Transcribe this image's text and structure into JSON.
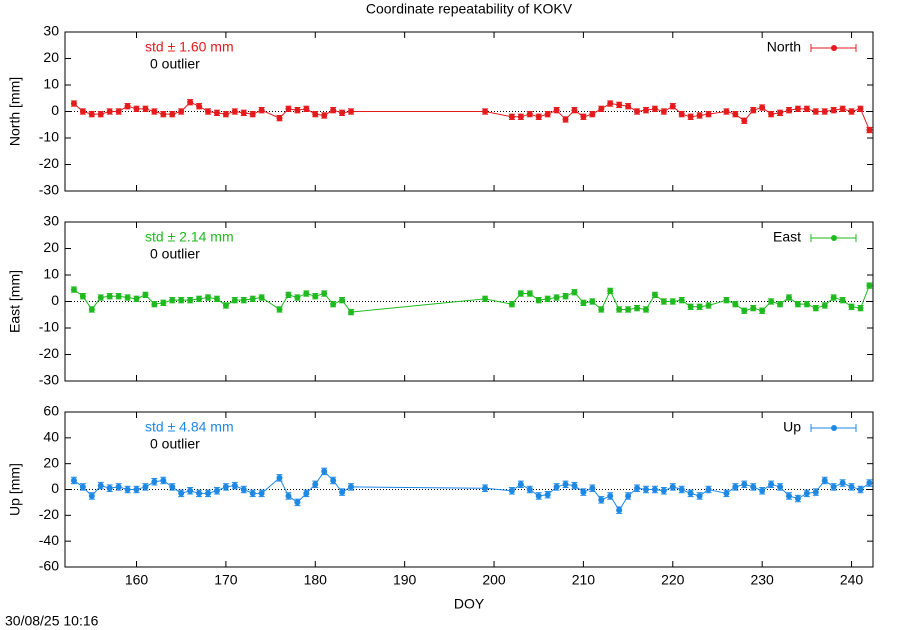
{
  "title": "Coordinate repeatability of KOKV",
  "timestamp": "30/08/25 10:16",
  "chart_data": [
    {
      "type": "line",
      "ylabel": "North [mm]",
      "annotation": "std ± 1.60 mm",
      "outliers": "0 outlier",
      "xlim": [
        152,
        242.4
      ],
      "xticks": [
        160,
        170,
        180,
        190,
        200,
        210,
        220,
        230,
        240
      ],
      "ylim": [
        -30,
        30
      ],
      "yticks": [
        -30,
        -20,
        -10,
        0,
        10,
        20,
        30
      ],
      "legend": "top-right",
      "x": [
        153,
        154,
        155,
        156,
        157,
        158,
        159,
        160,
        161,
        162,
        163,
        164,
        165,
        166,
        167,
        168,
        169,
        170,
        171,
        172,
        173,
        174,
        176,
        177,
        178,
        179,
        180,
        181,
        182,
        183,
        184,
        199,
        202,
        203,
        204,
        205,
        206,
        207,
        208,
        209,
        210,
        211,
        212,
        213,
        214,
        215,
        216,
        217,
        218,
        219,
        220,
        221,
        222,
        223,
        224,
        226,
        227,
        228,
        229,
        230,
        231,
        232,
        233,
        234,
        235,
        236,
        237,
        238,
        239,
        240,
        241,
        242
      ],
      "series": [
        {
          "name": "North",
          "color": "#e41a1c",
          "values": [
            3,
            0,
            -1,
            -1,
            0,
            0,
            2,
            1,
            1,
            0,
            -1,
            -1,
            0,
            3.5,
            2,
            0,
            -0.5,
            -1,
            0,
            -0.5,
            -1,
            0.5,
            -2.5,
            1,
            0.5,
            1,
            -1,
            -1.5,
            0.5,
            -0.5,
            0,
            0,
            -2,
            -2,
            -1,
            -2,
            -1,
            0.5,
            -3,
            0.5,
            -2,
            -1,
            1,
            3,
            2.5,
            2,
            0,
            0.5,
            1,
            0,
            2,
            -1,
            -2,
            -1.5,
            -1,
            0,
            -1,
            -3.5,
            0.5,
            1.5,
            -1,
            -0.5,
            0.5,
            1,
            1,
            0,
            0,
            0.5,
            1,
            0,
            1,
            -7
          ],
          "errors": [
            1,
            1,
            1,
            1,
            1,
            1,
            1,
            1,
            1,
            1,
            1,
            1,
            1,
            1,
            1,
            1,
            1,
            1,
            1,
            1,
            1,
            1,
            1,
            1,
            1,
            1,
            1,
            1,
            1,
            1,
            1,
            1,
            1,
            1,
            1,
            1,
            1,
            1,
            1,
            1,
            1,
            1,
            1,
            1,
            1,
            1,
            1,
            1,
            1,
            1,
            1,
            1,
            1,
            1,
            1,
            1,
            1,
            1,
            1,
            1,
            1,
            1,
            1,
            1,
            1,
            1,
            1,
            1,
            1,
            1,
            1,
            1
          ]
        }
      ]
    },
    {
      "type": "line",
      "ylabel": "East [mm]",
      "annotation": "std ± 2.14 mm",
      "outliers": "0 outlier",
      "xlim": [
        152,
        242.4
      ],
      "xticks": [
        160,
        170,
        180,
        190,
        200,
        210,
        220,
        230,
        240
      ],
      "ylim": [
        -30,
        30
      ],
      "yticks": [
        -30,
        -20,
        -10,
        0,
        10,
        20,
        30
      ],
      "legend": "top-right",
      "x": [
        153,
        154,
        155,
        156,
        157,
        158,
        159,
        160,
        161,
        162,
        163,
        164,
        165,
        166,
        167,
        168,
        169,
        170,
        171,
        172,
        173,
        174,
        176,
        177,
        178,
        179,
        180,
        181,
        182,
        183,
        184,
        199,
        202,
        203,
        204,
        205,
        206,
        207,
        208,
        209,
        210,
        211,
        212,
        213,
        214,
        215,
        216,
        217,
        218,
        219,
        220,
        221,
        222,
        223,
        224,
        226,
        227,
        228,
        229,
        230,
        231,
        232,
        233,
        234,
        235,
        236,
        237,
        238,
        239,
        240,
        241,
        242
      ],
      "series": [
        {
          "name": "East",
          "color": "#1fba1f",
          "values": [
            4.5,
            2,
            -3,
            1.5,
            2,
            2,
            1.5,
            1,
            2.5,
            -1,
            -0.5,
            0.5,
            0.5,
            0.5,
            1,
            1.5,
            1,
            -1.5,
            0.5,
            0.5,
            1,
            1.5,
            -3,
            2.5,
            1.5,
            3,
            2,
            3,
            -1,
            0.5,
            -4,
            1,
            -1,
            3,
            3,
            0.5,
            1,
            1.5,
            2,
            3.5,
            -0.5,
            0,
            -3,
            4,
            -3,
            -3,
            -2.5,
            -3,
            2.5,
            0,
            0,
            0.5,
            -2,
            -2,
            -1.5,
            0.5,
            -1,
            -3.5,
            -2.5,
            -3.5,
            0,
            -1,
            1.5,
            -1,
            -1,
            -2.5,
            -1.5,
            1.5,
            0.5,
            -2,
            -2.5,
            6
          ],
          "errors": [
            1,
            1,
            1,
            1,
            1,
            1,
            1,
            1,
            1,
            1,
            1,
            1,
            1,
            1,
            1,
            1,
            1,
            1,
            1,
            1,
            1,
            1,
            1,
            1,
            1,
            1,
            1,
            1,
            1,
            1,
            1,
            1,
            1,
            1,
            1,
            1,
            1,
            1,
            1,
            1,
            1,
            1,
            1,
            1,
            1,
            1,
            1,
            1,
            1,
            1,
            1,
            1,
            1,
            1,
            1,
            1,
            1,
            1,
            1,
            1,
            1,
            1,
            1,
            1,
            1,
            1,
            1,
            1,
            1,
            1,
            1,
            1
          ]
        }
      ]
    },
    {
      "type": "line",
      "ylabel": "Up [mm]",
      "xlabel": "DOY",
      "annotation": "std ± 4.84 mm",
      "outliers": "0 outlier",
      "xlim": [
        152,
        242.4
      ],
      "xticks": [
        160,
        170,
        180,
        190,
        200,
        210,
        220,
        230,
        240
      ],
      "ylim": [
        -60,
        60
      ],
      "yticks": [
        -60,
        -40,
        -20,
        0,
        20,
        40,
        60
      ],
      "legend": "top-right",
      "x": [
        153,
        154,
        155,
        156,
        157,
        158,
        159,
        160,
        161,
        162,
        163,
        164,
        165,
        166,
        167,
        168,
        169,
        170,
        171,
        172,
        173,
        174,
        176,
        177,
        178,
        179,
        180,
        181,
        182,
        183,
        184,
        199,
        202,
        203,
        204,
        205,
        206,
        207,
        208,
        209,
        210,
        211,
        212,
        213,
        214,
        215,
        216,
        217,
        218,
        219,
        220,
        221,
        222,
        223,
        224,
        226,
        227,
        228,
        229,
        230,
        231,
        232,
        233,
        234,
        235,
        236,
        237,
        238,
        239,
        240,
        241,
        242
      ],
      "series": [
        {
          "name": "Up",
          "color": "#1e88e5",
          "values": [
            7,
            2,
            -5,
            3,
            1,
            2,
            0,
            0,
            2,
            6,
            7,
            2,
            -3,
            -1,
            -3,
            -3,
            -1,
            2,
            3,
            0,
            -3,
            -3,
            9,
            -5,
            -10,
            -3,
            4,
            14,
            7,
            -2,
            2,
            1,
            -1,
            4,
            0,
            -5,
            -4,
            2,
            4,
            3,
            -2,
            1,
            -8,
            -5,
            -16,
            -5,
            1,
            0,
            0,
            -1,
            2,
            0,
            -3,
            -5,
            0,
            -3,
            2,
            4,
            2,
            -1,
            4,
            2,
            -5,
            -7,
            -3,
            -2,
            7,
            2,
            5,
            2,
            0,
            5
          ],
          "errors": [
            2.5,
            2.5,
            2.5,
            2.5,
            2.5,
            2.5,
            2.5,
            2.5,
            2.5,
            2.5,
            2.5,
            2.5,
            2.5,
            2.5,
            2.5,
            2.5,
            2.5,
            2.5,
            2.5,
            2.5,
            2.5,
            2.5,
            2.5,
            2.5,
            2.5,
            2.5,
            2.5,
            2.5,
            2.5,
            2.5,
            2.5,
            2.5,
            2.5,
            2.5,
            2.5,
            2.5,
            2.5,
            2.5,
            2.5,
            2.5,
            2.5,
            2.5,
            2.5,
            2.5,
            2.5,
            2.5,
            2.5,
            2.5,
            2.5,
            2.5,
            2.5,
            2.5,
            2.5,
            2.5,
            2.5,
            2.5,
            2.5,
            2.5,
            2.5,
            2.5,
            2.5,
            2.5,
            2.5,
            2.5,
            2.5,
            2.5,
            2.5,
            2.5,
            2.5,
            2.5,
            2.5,
            2.5
          ]
        }
      ]
    }
  ]
}
